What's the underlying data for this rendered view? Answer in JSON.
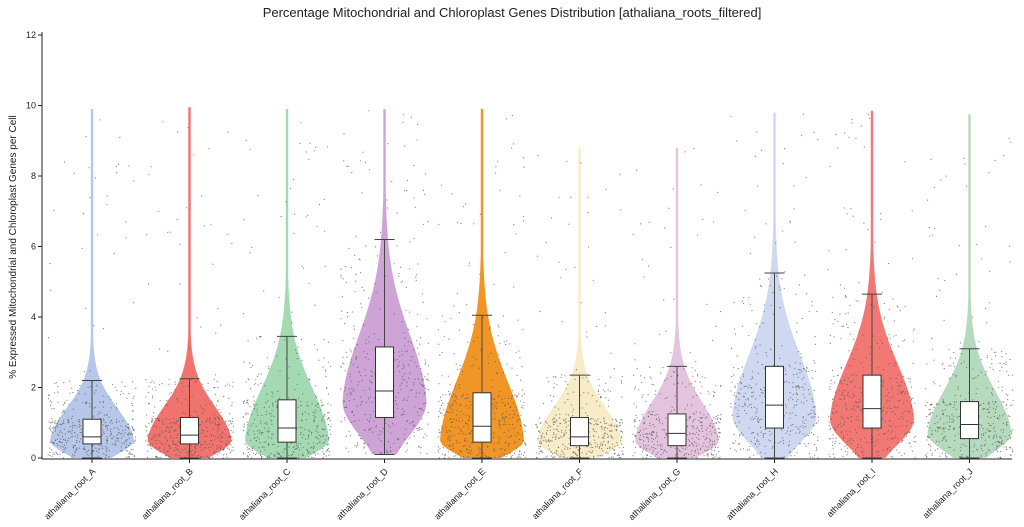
{
  "chart_data": {
    "type": "violin",
    "title": "Percentage Mitochondrial and Chloroplast Genes Distribution [athaliana_roots_filtered]",
    "ylabel": "% Expressed Mitochondrial and Chloroplast Genes per Cell",
    "xlabel": "",
    "ylim": [
      0,
      12
    ],
    "yticks": [
      "0",
      "2",
      "4",
      "6",
      "8",
      "10",
      "12"
    ],
    "grid": false,
    "legend": "none",
    "categories": [
      "athaliana_root_A",
      "athaliana_root_B",
      "athaliana_root_C",
      "athaliana_root_D",
      "athaliana_root_E",
      "athaliana_root_F",
      "athaliana_root_G",
      "athaliana_root_H",
      "athaliana_root_I",
      "athaliana_root_J"
    ],
    "series": [
      {
        "color": "#a9bde6",
        "min": 0.0,
        "q1": 0.4,
        "median": 0.6,
        "q3": 1.1,
        "whisker_high": 2.2,
        "max": 9.9,
        "mode": 0.5
      },
      {
        "color": "#ee5a55",
        "min": 0.0,
        "q1": 0.4,
        "median": 0.65,
        "q3": 1.15,
        "whisker_high": 2.25,
        "max": 9.95,
        "mode": 0.5
      },
      {
        "color": "#93d3a6",
        "min": 0.0,
        "q1": 0.45,
        "median": 0.85,
        "q3": 1.65,
        "whisker_high": 3.45,
        "max": 9.9,
        "mode": 0.5
      },
      {
        "color": "#c594d0",
        "min": 0.1,
        "q1": 1.15,
        "median": 1.9,
        "q3": 3.15,
        "whisker_high": 6.2,
        "max": 9.9,
        "mode": 1.6
      },
      {
        "color": "#ee8400",
        "min": 0.0,
        "q1": 0.45,
        "median": 0.9,
        "q3": 1.85,
        "whisker_high": 4.05,
        "max": 9.9,
        "mode": 0.5
      },
      {
        "color": "#f7e9be",
        "min": 0.0,
        "q1": 0.35,
        "median": 0.6,
        "q3": 1.15,
        "whisker_high": 2.35,
        "max": 8.8,
        "mode": 0.5
      },
      {
        "color": "#dfb8d8",
        "min": 0.0,
        "q1": 0.35,
        "median": 0.7,
        "q3": 1.25,
        "whisker_high": 2.6,
        "max": 8.8,
        "mode": 0.5
      },
      {
        "color": "#c5d1ee",
        "min": 0.0,
        "q1": 0.85,
        "median": 1.5,
        "q3": 2.6,
        "whisker_high": 5.25,
        "max": 9.8,
        "mode": 1.2
      },
      {
        "color": "#f0615b",
        "min": 0.0,
        "q1": 0.85,
        "median": 1.4,
        "q3": 2.35,
        "whisker_high": 4.65,
        "max": 9.85,
        "mode": 1.1
      },
      {
        "color": "#a9d3b3",
        "min": 0.0,
        "q1": 0.55,
        "median": 0.95,
        "q3": 1.6,
        "whisker_high": 3.1,
        "max": 9.75,
        "mode": 0.7
      }
    ]
  }
}
